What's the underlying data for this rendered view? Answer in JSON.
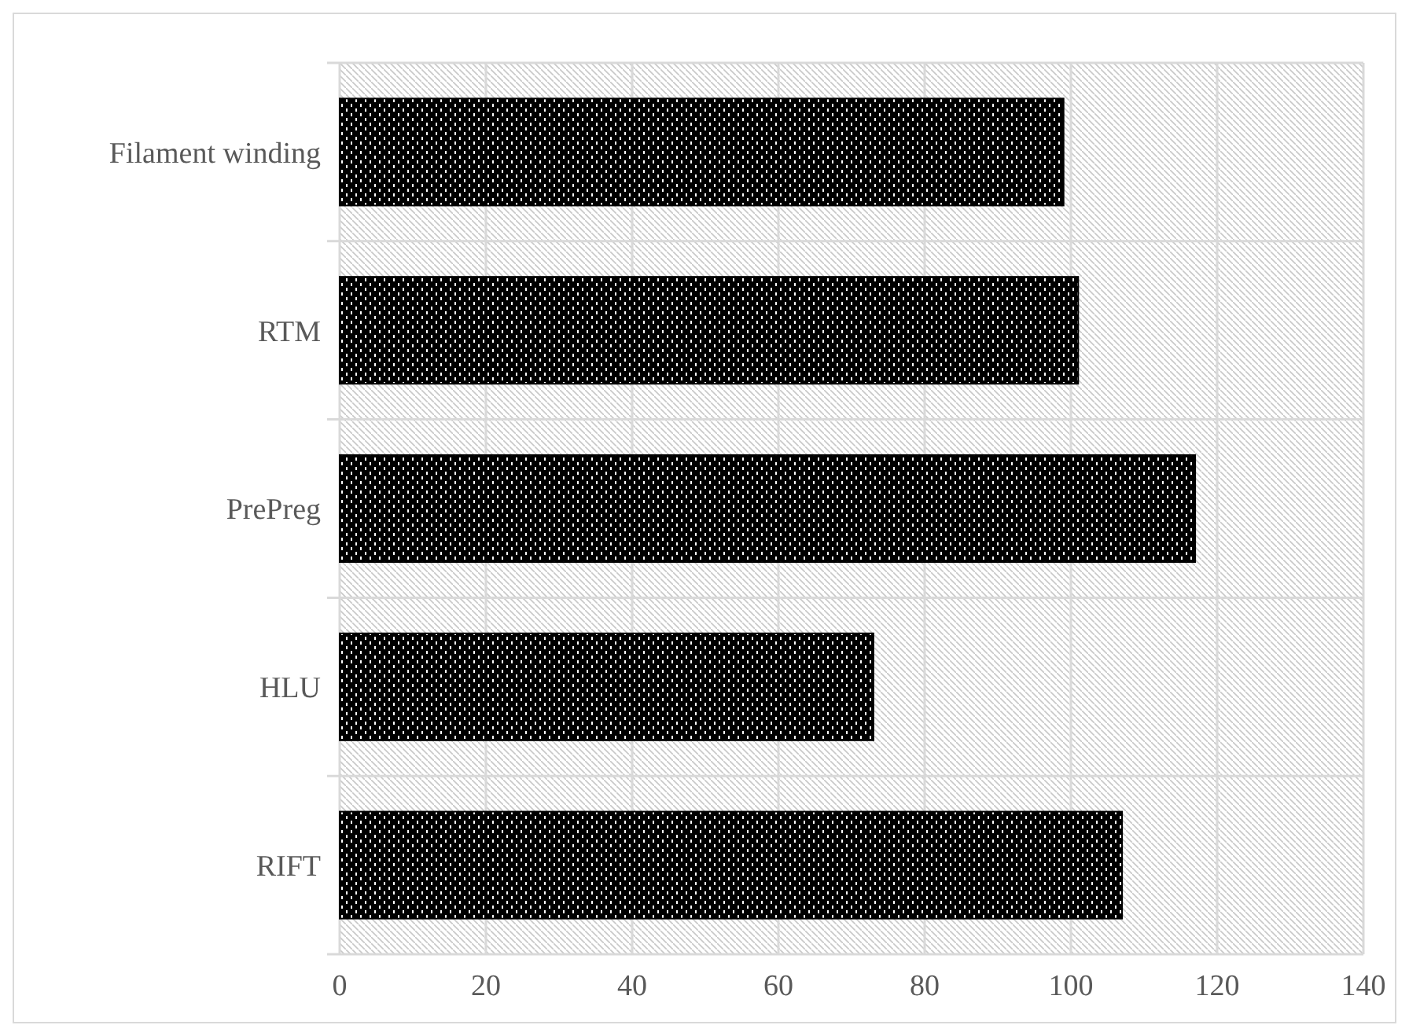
{
  "chart_data": {
    "type": "bar",
    "orientation": "horizontal",
    "categories": [
      "Filament winding",
      "RTM",
      "PrePreg",
      "HLU",
      "RIFT"
    ],
    "values": [
      99,
      101,
      117,
      73,
      107
    ],
    "color": "#000000",
    "xlim": [
      0,
      140
    ],
    "xticks": [
      0,
      20,
      40,
      60,
      80,
      100,
      120,
      140
    ],
    "grid": true
  }
}
